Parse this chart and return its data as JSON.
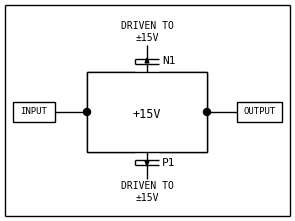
{
  "bg_color": "#ffffff",
  "line_color": "#000000",
  "text_color": "#000000",
  "fig_width": 2.95,
  "fig_height": 2.21,
  "dpi": 100,
  "title_top": "DRIVEN TO\n±15V",
  "title_bottom": "DRIVEN TO\n±15V",
  "label_n1": "N1",
  "label_p1": "P1",
  "label_plus15v": "+15V",
  "label_input": "INPUT",
  "label_output": "OUTPUT"
}
